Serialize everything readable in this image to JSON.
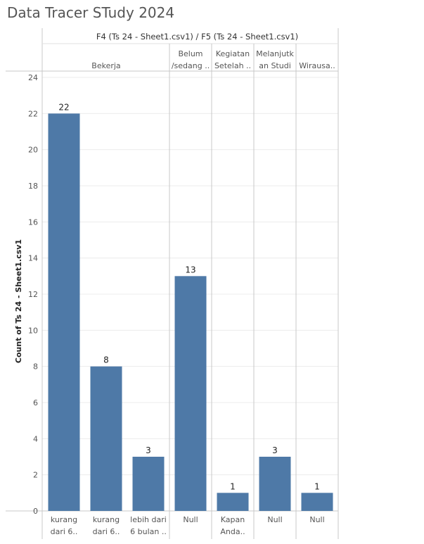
{
  "page": {
    "title": "Data Tracer STudy 2024"
  },
  "colors": {
    "bar": "#4e79a7",
    "grid": "#ececec",
    "divider": "#c8c8c8"
  },
  "chart_data": {
    "type": "bar",
    "header": "F4 (Ts 24 - Sheet1.csv1) / F5 (Ts 24 - Sheet1.csv1)",
    "ylabel": "Count of Ts 24 - Sheet1.csv1",
    "ylim": [
      0,
      24
    ],
    "yticks": [
      0,
      2,
      4,
      6,
      8,
      10,
      12,
      14,
      16,
      18,
      20,
      22,
      24
    ],
    "grid": true,
    "groups": [
      {
        "label": [
          "Bekerja"
        ],
        "bars": [
          {
            "label": [
              "kurang",
              "dari 6.."
            ],
            "value": 22
          },
          {
            "label": [
              "kurang",
              "dari 6.."
            ],
            "value": 8
          },
          {
            "label": [
              "lebih dari",
              "6 bulan .."
            ],
            "value": 3
          }
        ]
      },
      {
        "label": [
          "Belum",
          "/sedang .."
        ],
        "bars": [
          {
            "label": [
              "Null"
            ],
            "value": 13
          }
        ]
      },
      {
        "label": [
          "Kegiatan",
          "Setelah .."
        ],
        "bars": [
          {
            "label": [
              "Kapan",
              "Anda.."
            ],
            "value": 1
          }
        ]
      },
      {
        "label": [
          "Melanjutk",
          "an Studi"
        ],
        "bars": [
          {
            "label": [
              "Null"
            ],
            "value": 3
          }
        ]
      },
      {
        "label": [
          "Wirausa.."
        ],
        "bars": [
          {
            "label": [
              "Null"
            ],
            "value": 1
          }
        ]
      }
    ]
  }
}
